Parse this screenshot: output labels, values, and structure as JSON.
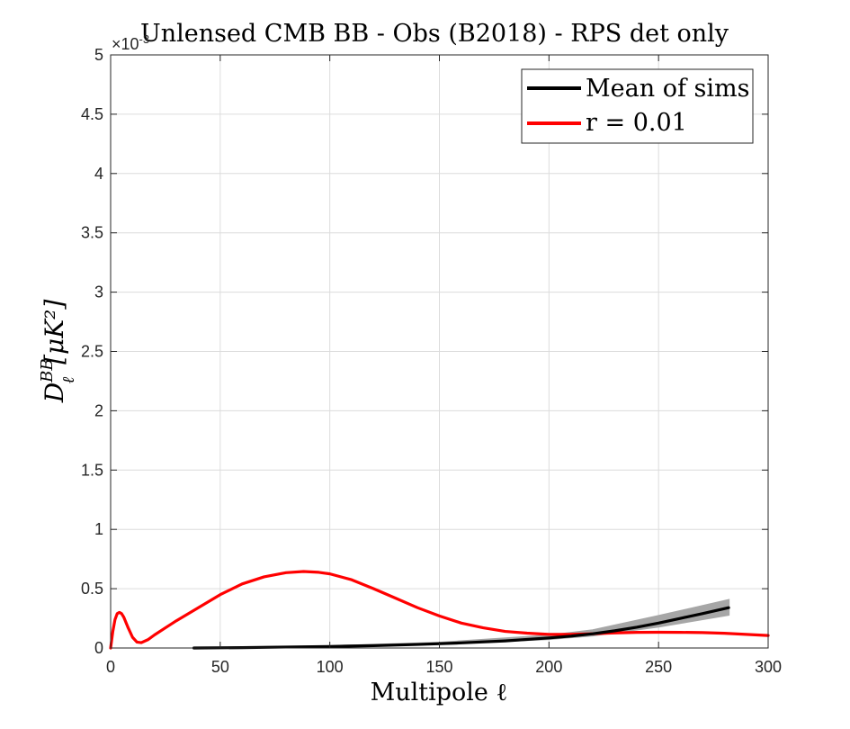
{
  "chart_data": {
    "type": "line",
    "title": "Unlensed CMB BB - Obs (B2018) - RPS det only",
    "xlabel": "Multipole ℓ",
    "ylabel_main": "D",
    "ylabel_sup": "BB",
    "ylabel_sub": "ℓ",
    "ylabel_unit": "[μK²]",
    "y_exponent_label": "×10",
    "y_exponent_power": "-3",
    "xlim": [
      0,
      300
    ],
    "ylim": [
      0,
      5
    ],
    "y_scale_factor": 0.001,
    "xticks": [
      0,
      50,
      100,
      150,
      200,
      250,
      300
    ],
    "yticks": [
      0,
      0.5,
      1,
      1.5,
      2,
      2.5,
      3,
      3.5,
      4,
      4.5,
      5
    ],
    "ytick_labels": [
      "0",
      "0.5",
      "1",
      "1.5",
      "2",
      "2.5",
      "3",
      "3.5",
      "4",
      "4.5",
      "5"
    ],
    "grid": true,
    "legend_position": "top-right",
    "colors": {
      "mean": "#000000",
      "r": "#ff0000",
      "band": "#a6a6a6",
      "grid": "#dcdcdc",
      "axis": "#262626"
    },
    "band": {
      "x": [
        38,
        100,
        150,
        200,
        220,
        250,
        282
      ],
      "lower": [
        0.0,
        0.01,
        0.035,
        0.075,
        0.105,
        0.18,
        0.28
      ],
      "upper": [
        0.0,
        0.015,
        0.045,
        0.105,
        0.15,
        0.27,
        0.405
      ]
    },
    "series": [
      {
        "name": "Mean of sims",
        "x": [
          38,
          60,
          80,
          100,
          120,
          140,
          160,
          180,
          200,
          210,
          220,
          230,
          240,
          250,
          260,
          270,
          282
        ],
        "y": [
          0.0,
          0.003,
          0.008,
          0.013,
          0.02,
          0.03,
          0.043,
          0.06,
          0.085,
          0.1,
          0.12,
          0.145,
          0.175,
          0.21,
          0.25,
          0.29,
          0.34
        ]
      },
      {
        "name": "r = 0.01",
        "x": [
          0,
          1,
          2,
          3,
          4,
          5,
          6,
          8,
          10,
          12,
          14,
          17,
          20,
          25,
          30,
          40,
          50,
          60,
          70,
          80,
          88,
          95,
          100,
          110,
          120,
          130,
          140,
          150,
          160,
          170,
          180,
          190,
          200,
          210,
          220,
          230,
          240,
          250,
          260,
          270,
          280,
          290,
          300
        ],
        "y": [
          0.0,
          0.14,
          0.24,
          0.29,
          0.3,
          0.29,
          0.26,
          0.17,
          0.09,
          0.05,
          0.045,
          0.07,
          0.11,
          0.17,
          0.23,
          0.34,
          0.45,
          0.54,
          0.6,
          0.635,
          0.645,
          0.638,
          0.625,
          0.575,
          0.5,
          0.42,
          0.34,
          0.27,
          0.21,
          0.17,
          0.14,
          0.125,
          0.115,
          0.115,
          0.12,
          0.127,
          0.132,
          0.133,
          0.132,
          0.13,
          0.124,
          0.115,
          0.105
        ]
      }
    ]
  }
}
